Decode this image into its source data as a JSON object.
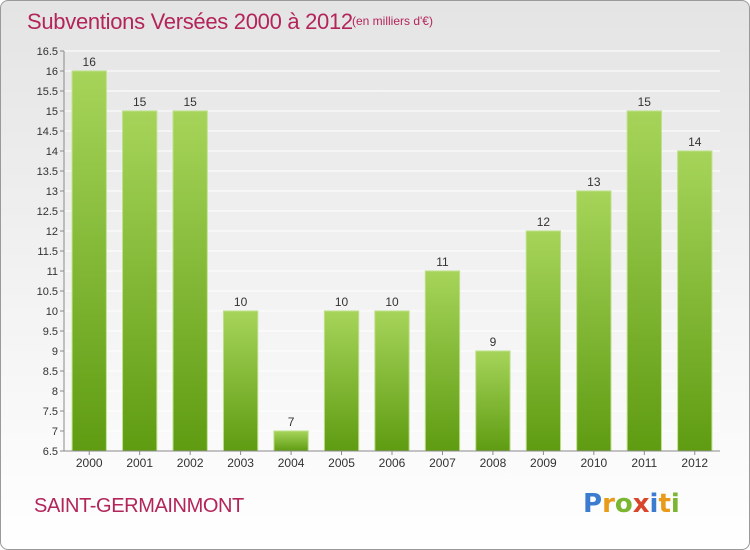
{
  "header": {
    "title": "Subventions Versées 2000 à 2012",
    "unit": "(en milliers d'€)"
  },
  "footer": {
    "commune": "SAINT-GERMAINMONT",
    "logo_text": "Proxiti"
  },
  "colors": {
    "accent": "#b3255a",
    "bar_top": "#a6d45a",
    "bar_bottom": "#5f9c12"
  },
  "chart_data": {
    "type": "bar",
    "title": "Subventions Versées 2000 à 2012",
    "subtitle": "(en milliers d'€)",
    "xlabel": "",
    "ylabel": "",
    "categories": [
      "2000",
      "2001",
      "2002",
      "2003",
      "2004",
      "2005",
      "2006",
      "2007",
      "2008",
      "2009",
      "2010",
      "2011",
      "2012"
    ],
    "values": [
      16,
      15,
      15,
      10,
      7,
      10,
      10,
      11,
      9,
      12,
      13,
      15,
      14
    ],
    "data_labels": [
      "16",
      "15",
      "15",
      "10",
      "7",
      "10",
      "10",
      "11",
      "9",
      "12",
      "13",
      "15",
      "14"
    ],
    "ylim": [
      6.5,
      16.5
    ],
    "yticks": [
      6.5,
      7,
      7.5,
      8,
      8.5,
      9,
      9.5,
      10,
      10.5,
      11,
      11.5,
      12,
      12.5,
      13,
      13.5,
      14,
      14.5,
      15,
      15.5,
      16,
      16.5
    ],
    "ytick_labels": [
      "6.5",
      "7",
      "7.5",
      "8",
      "8.5",
      "9",
      "9.5",
      "10",
      "10.5",
      "11",
      "11.5",
      "12",
      "12.5",
      "13",
      "13.5",
      "14",
      "14.5",
      "15",
      "15.5",
      "16",
      "16.5"
    ],
    "grid": true
  }
}
